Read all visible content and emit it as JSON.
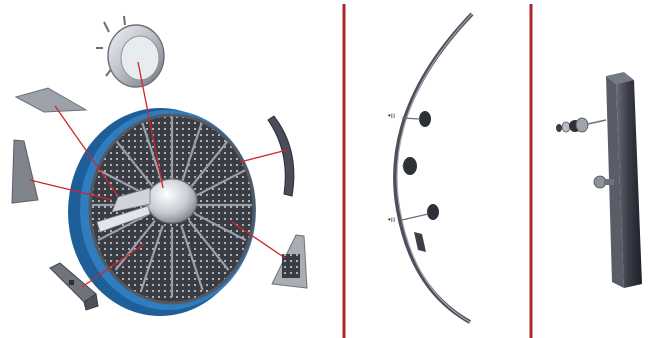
{
  "figure": {
    "panels": [
      {
        "id": "exploded-wheel-assembly"
      },
      {
        "id": "rim-segment-with-fasteners"
      },
      {
        "id": "vertical-bar-with-bolt"
      }
    ],
    "colors": {
      "background": "#ffffff",
      "divider": "#a8282c",
      "leader_line": "#d0262b",
      "wheel_ring": "#2f7dbf",
      "wheel_face": "#3a3c44",
      "metal_light": "#d9dde3",
      "metal_dark": "#5a5e66",
      "bar": "#3b3d49"
    },
    "divider_count": 2
  }
}
